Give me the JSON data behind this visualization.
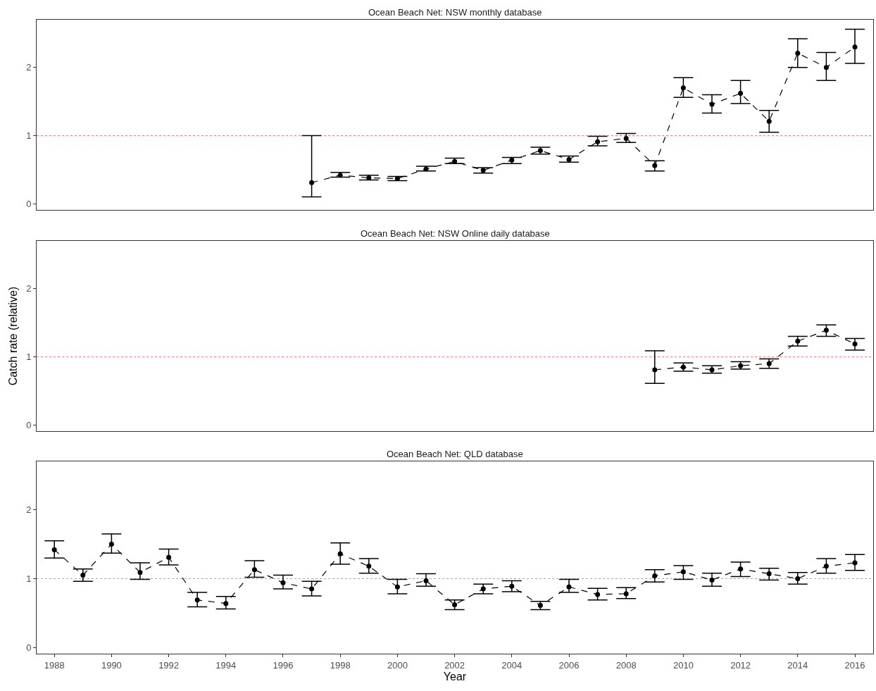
{
  "chart_data": [
    {
      "type": "line",
      "title": "Ocean Beach Net: NSW monthly database",
      "x": [
        1997,
        1998,
        1999,
        2000,
        2001,
        2002,
        2003,
        2004,
        2005,
        2006,
        2007,
        2008,
        2009,
        2010,
        2011,
        2012,
        2013,
        2014,
        2015,
        2016
      ],
      "values": [
        0.31,
        0.42,
        0.38,
        0.37,
        0.51,
        0.62,
        0.49,
        0.64,
        0.78,
        0.65,
        0.91,
        0.96,
        0.56,
        1.7,
        1.46,
        1.62,
        1.21,
        2.21,
        2.0,
        2.3
      ],
      "errors": [
        [
          0.1,
          1.0
        ],
        [
          0.39,
          0.46
        ],
        [
          0.35,
          0.42
        ],
        [
          0.34,
          0.4
        ],
        [
          0.48,
          0.55
        ],
        [
          0.59,
          0.67
        ],
        [
          0.45,
          0.53
        ],
        [
          0.59,
          0.68
        ],
        [
          0.73,
          0.83
        ],
        [
          0.61,
          0.7
        ],
        [
          0.85,
          0.99
        ],
        [
          0.9,
          1.03
        ],
        [
          0.48,
          0.63
        ],
        [
          1.56,
          1.85
        ],
        [
          1.33,
          1.6
        ],
        [
          1.47,
          1.81
        ],
        [
          1.05,
          1.37
        ],
        [
          2.0,
          2.42
        ],
        [
          1.81,
          2.22
        ],
        [
          2.06,
          2.56
        ]
      ],
      "color": "#000000",
      "marker": "circle",
      "line_style": "dashed",
      "grid": false,
      "tick_labels": "y",
      "xlim": [
        1987.38,
        2016.64
      ],
      "ylim": [
        -0.09,
        2.7
      ],
      "yticks": [
        0,
        1,
        2
      ],
      "ref_lines": [
        {
          "axis": "y",
          "value": 1,
          "color": "#f08080",
          "line_style": "dotted"
        }
      ]
    },
    {
      "type": "line",
      "title": "Ocean Beach Net: NSW Online daily database",
      "ylabel": "Catch rate (relative)",
      "x": [
        2009,
        2010,
        2011,
        2012,
        2013,
        2014,
        2015,
        2016
      ],
      "values": [
        0.81,
        0.85,
        0.81,
        0.87,
        0.9,
        1.23,
        1.39,
        1.19
      ],
      "errors": [
        [
          0.61,
          1.09
        ],
        [
          0.79,
          0.91
        ],
        [
          0.76,
          0.87
        ],
        [
          0.82,
          0.93
        ],
        [
          0.83,
          0.97
        ],
        [
          1.16,
          1.3
        ],
        [
          1.3,
          1.47
        ],
        [
          1.1,
          1.27
        ]
      ],
      "color": "#000000",
      "marker": "circle",
      "line_style": "dashed",
      "grid": false,
      "tick_labels": "y",
      "xlim": [
        1987.38,
        2016.64
      ],
      "ylim": [
        -0.09,
        2.7
      ],
      "yticks": [
        0,
        1,
        2
      ],
      "ref_lines": [
        {
          "axis": "y",
          "value": 1,
          "color": "#f08080",
          "line_style": "dotted"
        }
      ]
    },
    {
      "type": "line",
      "title": "Ocean Beach Net: QLD database",
      "xlabel": "Year",
      "x": [
        1988,
        1989,
        1990,
        1991,
        1992,
        1993,
        1994,
        1995,
        1996,
        1997,
        1998,
        1999,
        2000,
        2001,
        2002,
        2003,
        2004,
        2005,
        2006,
        2007,
        2008,
        2009,
        2010,
        2011,
        2012,
        2013,
        2014,
        2015,
        2016
      ],
      "values": [
        1.42,
        1.05,
        1.5,
        1.09,
        1.31,
        0.69,
        0.64,
        1.13,
        0.94,
        0.85,
        1.36,
        1.18,
        0.88,
        0.97,
        0.62,
        0.85,
        0.89,
        0.61,
        0.88,
        0.77,
        0.78,
        1.04,
        1.1,
        0.98,
        1.14,
        1.07,
        1.0,
        1.18,
        1.23
      ],
      "errors": [
        [
          1.3,
          1.55
        ],
        [
          0.96,
          1.14
        ],
        [
          1.37,
          1.65
        ],
        [
          0.99,
          1.23
        ],
        [
          1.2,
          1.43
        ],
        [
          0.59,
          0.8
        ],
        [
          0.56,
          0.74
        ],
        [
          1.02,
          1.26
        ],
        [
          0.85,
          1.05
        ],
        [
          0.75,
          0.96
        ],
        [
          1.21,
          1.52
        ],
        [
          1.08,
          1.29
        ],
        [
          0.78,
          0.99
        ],
        [
          0.89,
          1.07
        ],
        [
          0.55,
          0.69
        ],
        [
          0.78,
          0.92
        ],
        [
          0.81,
          0.97
        ],
        [
          0.55,
          0.67
        ],
        [
          0.8,
          0.99
        ],
        [
          0.69,
          0.86
        ],
        [
          0.71,
          0.87
        ],
        [
          0.95,
          1.13
        ],
        [
          0.99,
          1.19
        ],
        [
          0.89,
          1.08
        ],
        [
          1.03,
          1.24
        ],
        [
          0.98,
          1.15
        ],
        [
          0.92,
          1.09
        ],
        [
          1.08,
          1.29
        ],
        [
          1.12,
          1.35
        ]
      ],
      "color": "#000000",
      "marker": "circle",
      "line_style": "dashed",
      "grid": false,
      "xlim": [
        1987.38,
        2016.64
      ],
      "xticks": [
        1988,
        1990,
        1992,
        1994,
        1996,
        1998,
        2000,
        2002,
        2004,
        2006,
        2008,
        2010,
        2012,
        2014,
        2016
      ],
      "ylim": [
        -0.09,
        2.7
      ],
      "yticks": [
        0,
        1,
        2
      ],
      "ref_lines": [
        {
          "axis": "y",
          "value": 1,
          "color": "#f08080",
          "line_style": "dotted"
        }
      ]
    }
  ]
}
